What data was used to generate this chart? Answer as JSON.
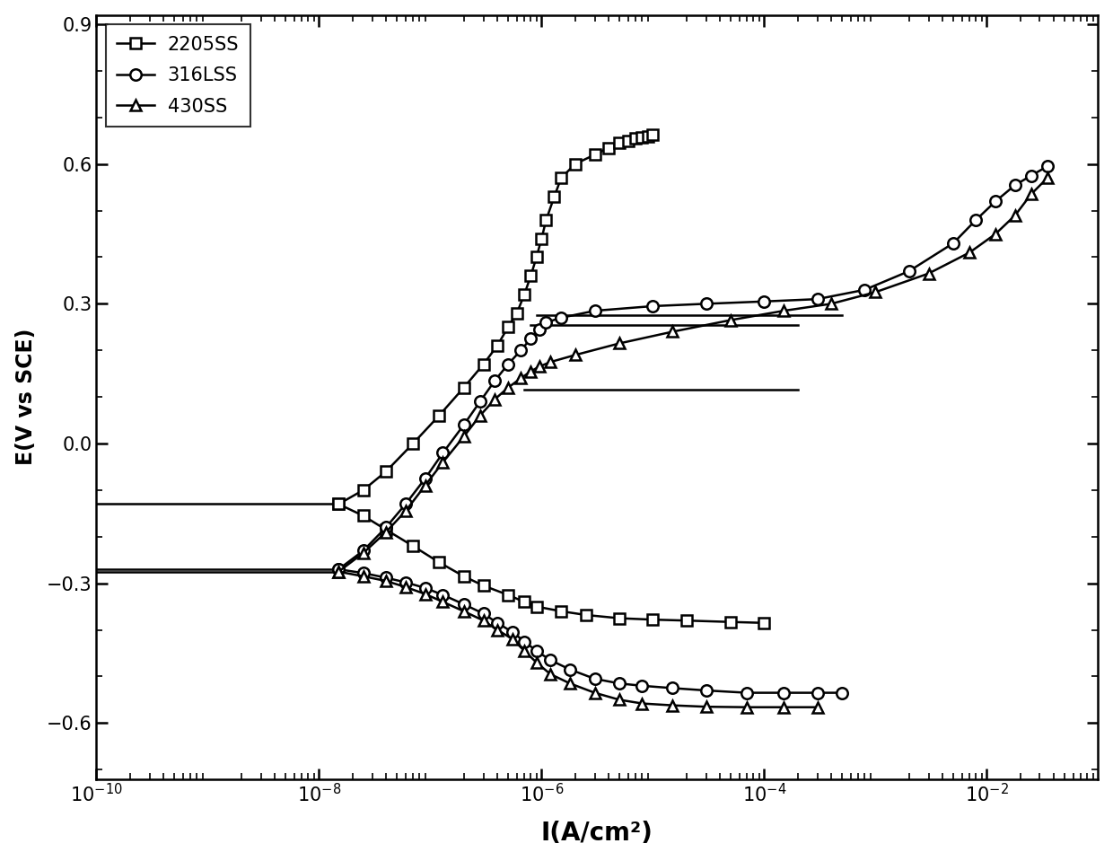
{
  "xlabel": "I(A/cm²)",
  "ylabel": "E(V vs SCE)",
  "xlim_log": [
    -10,
    -1
  ],
  "ylim": [
    -0.72,
    0.92
  ],
  "yticks": [
    -0.6,
    -0.3,
    0.0,
    0.3,
    0.6,
    0.9
  ],
  "legend_labels": [
    "2205SS",
    "316LSS",
    "430SS"
  ],
  "markers": {
    "2205SS": "s",
    "316LSS": "o",
    "430SS": "^"
  },
  "background_color": "white",
  "line_color": "#000000",
  "series": {
    "2205SS": {
      "corr_I": [
        1e-10,
        1.5e-08
      ],
      "corr_E": [
        -0.13,
        -0.13
      ],
      "anodic_I": [
        1.5e-08,
        2.5e-08,
        4e-08,
        7e-08,
        1.2e-07,
        2e-07,
        3e-07,
        4e-07,
        5e-07,
        6e-07,
        7e-07,
        8e-07,
        9e-07,
        1e-06,
        1.1e-06,
        1.3e-06,
        1.5e-06,
        2e-06,
        3e-06,
        4e-06,
        5e-06,
        6e-06,
        7e-06,
        8e-06,
        9e-06,
        1e-05
      ],
      "anodic_E": [
        -0.13,
        -0.1,
        -0.06,
        0.0,
        0.06,
        0.12,
        0.17,
        0.21,
        0.25,
        0.28,
        0.32,
        0.36,
        0.4,
        0.44,
        0.48,
        0.53,
        0.57,
        0.6,
        0.62,
        0.635,
        0.645,
        0.65,
        0.655,
        0.658,
        0.66,
        0.663
      ],
      "passive_I": [
        9e-07,
        0.0005
      ],
      "passive_E": [
        0.275,
        0.275
      ],
      "cathodic_I": [
        1.5e-08,
        2.5e-08,
        4e-08,
        7e-08,
        1.2e-07,
        2e-07,
        3e-07,
        5e-07,
        7e-07,
        9e-07,
        1.5e-06,
        2.5e-06,
        5e-06,
        1e-05,
        2e-05,
        5e-05,
        0.0001
      ],
      "cathodic_E": [
        -0.13,
        -0.155,
        -0.185,
        -0.22,
        -0.255,
        -0.285,
        -0.305,
        -0.325,
        -0.34,
        -0.35,
        -0.36,
        -0.368,
        -0.375,
        -0.378,
        -0.38,
        -0.383,
        -0.385
      ]
    },
    "316LSS": {
      "corr_I": [
        1e-10,
        1.5e-08
      ],
      "corr_E": [
        -0.27,
        -0.27
      ],
      "anodic_I": [
        1.5e-08,
        2.5e-08,
        4e-08,
        6e-08,
        9e-08,
        1.3e-07,
        2e-07,
        2.8e-07,
        3.8e-07,
        5e-07,
        6.5e-07,
        8e-07,
        9.5e-07,
        1.1e-06,
        1.5e-06,
        3e-06,
        1e-05,
        3e-05,
        0.0001,
        0.0003,
        0.0008,
        0.002,
        0.005,
        0.008,
        0.012,
        0.018,
        0.025,
        0.035
      ],
      "anodic_E": [
        -0.27,
        -0.23,
        -0.18,
        -0.13,
        -0.075,
        -0.02,
        0.04,
        0.09,
        0.135,
        0.17,
        0.2,
        0.225,
        0.245,
        0.26,
        0.27,
        0.285,
        0.295,
        0.3,
        0.305,
        0.31,
        0.33,
        0.37,
        0.43,
        0.48,
        0.52,
        0.555,
        0.575,
        0.595
      ],
      "passive_I": [
        8e-07,
        0.0002
      ],
      "passive_E": [
        0.255,
        0.255
      ],
      "cathodic_I": [
        1.5e-08,
        2.5e-08,
        4e-08,
        6e-08,
        9e-08,
        1.3e-07,
        2e-07,
        3e-07,
        4e-07,
        5.5e-07,
        7e-07,
        9e-07,
        1.2e-06,
        1.8e-06,
        3e-06,
        5e-06,
        8e-06,
        1.5e-05,
        3e-05,
        7e-05,
        0.00015,
        0.0003,
        0.0005
      ],
      "cathodic_E": [
        -0.27,
        -0.278,
        -0.288,
        -0.298,
        -0.31,
        -0.325,
        -0.345,
        -0.365,
        -0.385,
        -0.405,
        -0.425,
        -0.445,
        -0.465,
        -0.485,
        -0.505,
        -0.515,
        -0.52,
        -0.525,
        -0.53,
        -0.535,
        -0.535,
        -0.535,
        -0.535
      ]
    },
    "430SS": {
      "corr_I": [
        1e-10,
        1.5e-08
      ],
      "corr_E": [
        -0.275,
        -0.275
      ],
      "anodic_I": [
        1.5e-08,
        2.5e-08,
        4e-08,
        6e-08,
        9e-08,
        1.3e-07,
        2e-07,
        2.8e-07,
        3.8e-07,
        5e-07,
        6.5e-07,
        8e-07,
        9.5e-07,
        1.2e-06,
        2e-06,
        5e-06,
        1.5e-05,
        5e-05,
        0.00015,
        0.0004,
        0.001,
        0.003,
        0.007,
        0.012,
        0.018,
        0.025,
        0.035
      ],
      "anodic_E": [
        -0.275,
        -0.235,
        -0.19,
        -0.145,
        -0.09,
        -0.04,
        0.015,
        0.06,
        0.095,
        0.12,
        0.14,
        0.155,
        0.165,
        0.175,
        0.19,
        0.215,
        0.24,
        0.265,
        0.285,
        0.3,
        0.325,
        0.365,
        0.41,
        0.45,
        0.49,
        0.535,
        0.57
      ],
      "passive_I": [
        7e-07,
        0.0002
      ],
      "passive_E": [
        0.115,
        0.115
      ],
      "cathodic_I": [
        1.5e-08,
        2.5e-08,
        4e-08,
        6e-08,
        9e-08,
        1.3e-07,
        2e-07,
        3e-07,
        4e-07,
        5.5e-07,
        7e-07,
        9e-07,
        1.2e-06,
        1.8e-06,
        3e-06,
        5e-06,
        8e-06,
        1.5e-05,
        3e-05,
        7e-05,
        0.00015,
        0.0003
      ],
      "cathodic_E": [
        -0.275,
        -0.285,
        -0.295,
        -0.308,
        -0.323,
        -0.34,
        -0.36,
        -0.38,
        -0.4,
        -0.42,
        -0.445,
        -0.47,
        -0.495,
        -0.515,
        -0.535,
        -0.55,
        -0.558,
        -0.562,
        -0.565,
        -0.566,
        -0.566,
        -0.566
      ]
    }
  }
}
